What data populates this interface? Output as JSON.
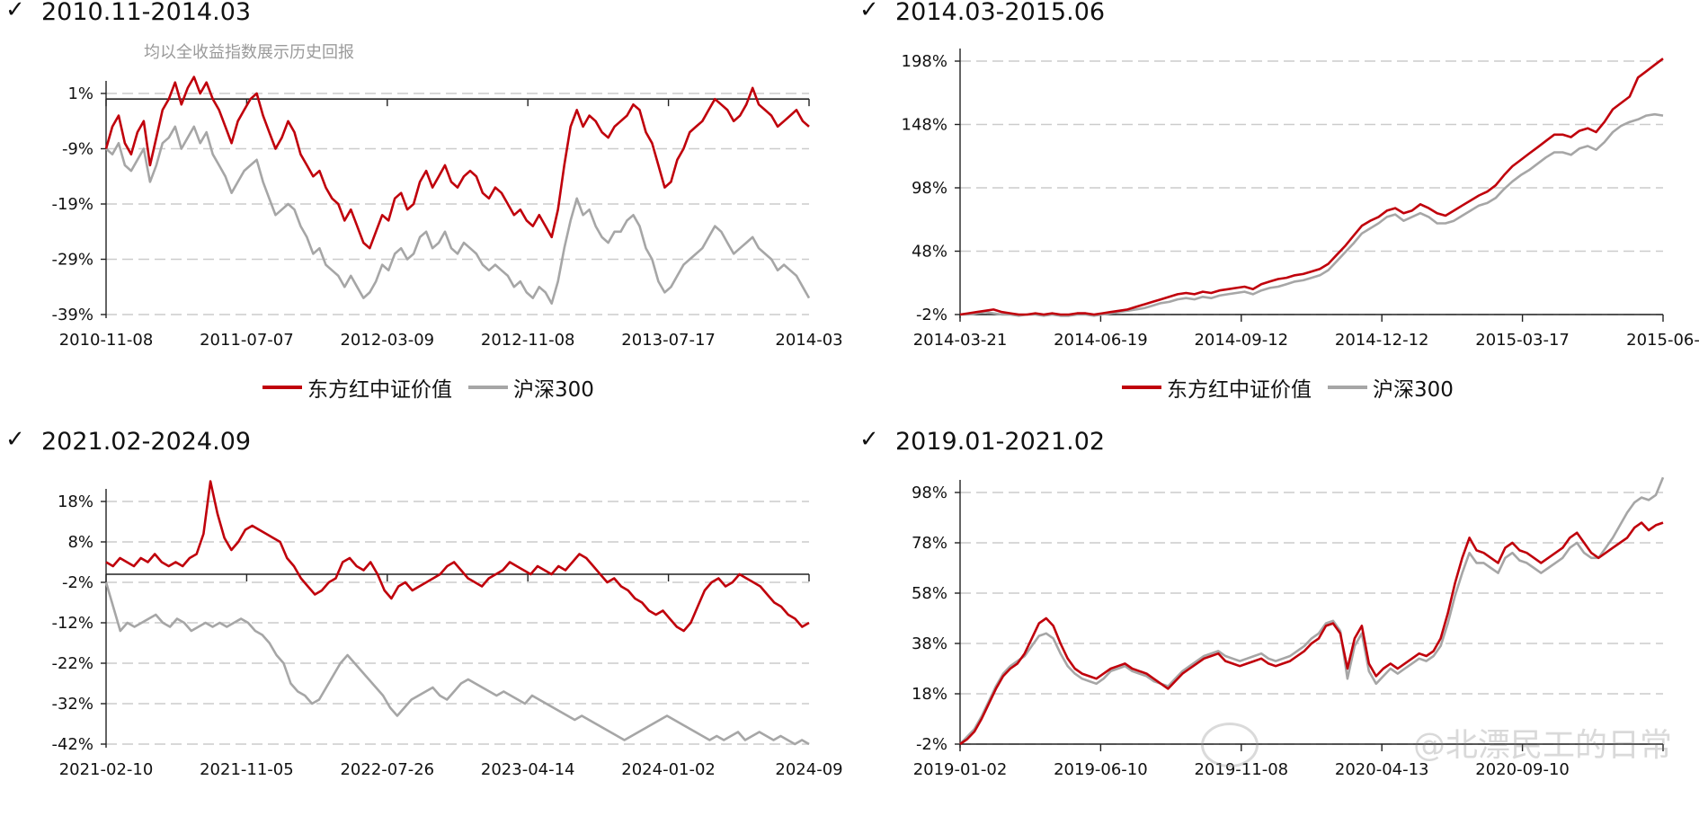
{
  "colors": {
    "red": "#c0000b",
    "gray": "#a6a6a6",
    "axis": "#222222",
    "grid": "#cccccc"
  },
  "watermark": "@北漂民工的日常",
  "chart_data": [
    {
      "type": "line",
      "check": "✓",
      "title": "2010.11-2014.03",
      "annotation": "均以全收益指数展示历史回报",
      "yticks": [
        "1%",
        "-9%",
        "-19%",
        "-29%",
        "-39%"
      ],
      "ylim": [
        -39,
        6
      ],
      "x_ticks": [
        "2010-11-08",
        "2011-07-07",
        "2012-03-09",
        "2012-11-08",
        "2013-07-17",
        "2014-03"
      ],
      "baseline": 0,
      "legend": [
        "东方红中证价值",
        "沪深300"
      ],
      "series": [
        {
          "name": "东方红中证价值",
          "color": "#c0000b",
          "values": [
            -9,
            -5,
            -3,
            -8,
            -10,
            -6,
            -4,
            -12,
            -7,
            -2,
            0,
            3,
            -1,
            2,
            4,
            1,
            3,
            0,
            -2,
            -5,
            -8,
            -4,
            -2,
            0,
            1,
            -3,
            -6,
            -9,
            -7,
            -4,
            -6,
            -10,
            -12,
            -14,
            -13,
            -16,
            -18,
            -19,
            -22,
            -20,
            -23,
            -26,
            -27,
            -24,
            -21,
            -22,
            -18,
            -17,
            -20,
            -19,
            -15,
            -13,
            -16,
            -14,
            -12,
            -15,
            -16,
            -14,
            -13,
            -14,
            -17,
            -18,
            -16,
            -17,
            -19,
            -21,
            -20,
            -22,
            -23,
            -21,
            -23,
            -25,
            -20,
            -12,
            -5,
            -2,
            -5,
            -3,
            -4,
            -6,
            -7,
            -5,
            -4,
            -3,
            -1,
            -2,
            -6,
            -8,
            -12,
            -16,
            -15,
            -11,
            -9,
            -6,
            -5,
            -4,
            -2,
            0,
            -1,
            -2,
            -4,
            -3,
            -1,
            2,
            -1,
            -2,
            -3,
            -5,
            -4,
            -3,
            -2,
            -4,
            -5
          ]
        },
        {
          "name": "沪深300",
          "color": "#a6a6a6",
          "values": [
            -9,
            -10,
            -8,
            -12,
            -13,
            -11,
            -9,
            -15,
            -12,
            -8,
            -7,
            -5,
            -9,
            -7,
            -5,
            -8,
            -6,
            -10,
            -12,
            -14,
            -17,
            -15,
            -13,
            -12,
            -11,
            -15,
            -18,
            -21,
            -20,
            -19,
            -20,
            -23,
            -25,
            -28,
            -27,
            -30,
            -31,
            -32,
            -34,
            -32,
            -34,
            -36,
            -35,
            -33,
            -30,
            -31,
            -28,
            -27,
            -29,
            -28,
            -25,
            -24,
            -27,
            -26,
            -24,
            -27,
            -28,
            -26,
            -27,
            -28,
            -30,
            -31,
            -30,
            -31,
            -32,
            -34,
            -33,
            -35,
            -36,
            -34,
            -35,
            -37,
            -33,
            -27,
            -22,
            -18,
            -21,
            -20,
            -23,
            -25,
            -26,
            -24,
            -24,
            -22,
            -21,
            -23,
            -27,
            -29,
            -33,
            -35,
            -34,
            -32,
            -30,
            -29,
            -28,
            -27,
            -25,
            -23,
            -24,
            -26,
            -28,
            -27,
            -26,
            -25,
            -27,
            -28,
            -29,
            -31,
            -30,
            -31,
            -32,
            -34,
            -36
          ]
        }
      ]
    },
    {
      "type": "line",
      "check": "✓",
      "title": "2014.03-2015.06",
      "yticks": [
        "198%",
        "148%",
        "98%",
        "48%",
        "-2%"
      ],
      "ylim": [
        -2,
        200
      ],
      "x_ticks": [
        "2014-03-21",
        "2014-06-19",
        "2014-09-12",
        "2014-12-12",
        "2015-03-17",
        "2015-06-"
      ],
      "legend": [
        "东方红中证价值",
        "沪深300"
      ],
      "series": [
        {
          "name": "东方红中证价值",
          "color": "#c0000b",
          "values": [
            -2,
            -1,
            0,
            1,
            2,
            0,
            -1,
            -2,
            -2,
            -1,
            -2,
            -1,
            -2,
            -2,
            -1,
            -1,
            -2,
            -1,
            0,
            1,
            2,
            4,
            6,
            8,
            10,
            12,
            14,
            15,
            14,
            16,
            15,
            17,
            18,
            19,
            20,
            18,
            22,
            24,
            26,
            27,
            29,
            30,
            32,
            34,
            38,
            45,
            52,
            60,
            68,
            72,
            75,
            80,
            82,
            78,
            80,
            85,
            82,
            78,
            76,
            80,
            84,
            88,
            92,
            95,
            100,
            108,
            115,
            120,
            125,
            130,
            135,
            140,
            140,
            138,
            143,
            145,
            142,
            150,
            160,
            165,
            170,
            185,
            190,
            195,
            200
          ]
        },
        {
          "name": "沪深300",
          "color": "#a6a6a6",
          "values": [
            -2,
            -2,
            -1,
            0,
            -1,
            -2,
            -2,
            -3,
            -2,
            -2,
            -3,
            -2,
            -3,
            -3,
            -2,
            -2,
            -3,
            -2,
            -1,
            0,
            1,
            2,
            3,
            5,
            7,
            8,
            10,
            11,
            10,
            12,
            11,
            13,
            14,
            15,
            16,
            14,
            17,
            19,
            20,
            22,
            24,
            25,
            27,
            29,
            33,
            40,
            47,
            54,
            62,
            66,
            70,
            75,
            77,
            72,
            75,
            78,
            75,
            70,
            70,
            72,
            76,
            80,
            84,
            86,
            90,
            97,
            103,
            108,
            112,
            117,
            122,
            126,
            126,
            124,
            129,
            131,
            128,
            134,
            142,
            147,
            150,
            152,
            155,
            156,
            155
          ]
        }
      ]
    },
    {
      "type": "line",
      "check": "✓",
      "title": "2021.02-2024.09",
      "yticks": [
        "18%",
        "8%",
        "-2%",
        "-12%",
        "-22%",
        "-32%",
        "-42%"
      ],
      "ylim": [
        -42,
        25
      ],
      "x_ticks": [
        "2021-02-10",
        "2021-11-05",
        "2022-07-26",
        "2023-04-14",
        "2024-01-02",
        "2024-09"
      ],
      "baseline": 0,
      "legend": [],
      "series": [
        {
          "name": "东方红中证价值",
          "color": "#c0000b",
          "values": [
            3,
            2,
            4,
            3,
            2,
            4,
            3,
            5,
            3,
            2,
            3,
            2,
            4,
            5,
            10,
            23,
            15,
            9,
            6,
            8,
            11,
            12,
            11,
            10,
            9,
            8,
            4,
            2,
            -1,
            -3,
            -5,
            -4,
            -2,
            -1,
            3,
            4,
            2,
            1,
            3,
            0,
            -4,
            -6,
            -3,
            -2,
            -4,
            -3,
            -2,
            -1,
            0,
            2,
            3,
            1,
            -1,
            -2,
            -3,
            -1,
            0,
            1,
            3,
            2,
            1,
            0,
            2,
            1,
            0,
            2,
            1,
            3,
            5,
            4,
            2,
            0,
            -2,
            -1,
            -3,
            -4,
            -6,
            -7,
            -9,
            -10,
            -9,
            -11,
            -13,
            -14,
            -12,
            -8,
            -4,
            -2,
            -1,
            -3,
            -2,
            0,
            -1,
            -2,
            -3,
            -5,
            -7,
            -8,
            -10,
            -11,
            -13,
            -12
          ]
        },
        {
          "name": "沪深300",
          "color": "#a6a6a6",
          "values": [
            -2,
            -8,
            -14,
            -12,
            -13,
            -12,
            -11,
            -10,
            -12,
            -13,
            -11,
            -12,
            -14,
            -13,
            -12,
            -13,
            -12,
            -13,
            -12,
            -11,
            -12,
            -14,
            -15,
            -17,
            -20,
            -22,
            -27,
            -29,
            -30,
            -32,
            -31,
            -28,
            -25,
            -22,
            -20,
            -22,
            -24,
            -26,
            -28,
            -30,
            -33,
            -35,
            -33,
            -31,
            -30,
            -29,
            -28,
            -30,
            -31,
            -29,
            -27,
            -26,
            -27,
            -28,
            -29,
            -30,
            -29,
            -30,
            -31,
            -32,
            -30,
            -31,
            -32,
            -33,
            -34,
            -35,
            -36,
            -35,
            -36,
            -37,
            -38,
            -39,
            -40,
            -41,
            -40,
            -39,
            -38,
            -37,
            -36,
            -35,
            -36,
            -37,
            -38,
            -39,
            -40,
            -41,
            -40,
            -41,
            -40,
            -39,
            -41,
            -40,
            -39,
            -40,
            -41,
            -40,
            -41,
            -42,
            -41,
            -42
          ]
        }
      ]
    },
    {
      "type": "line",
      "check": "✓",
      "title": "2019.01-2021.02",
      "yticks": [
        "98%",
        "78%",
        "58%",
        "38%",
        "18%",
        "-2%"
      ],
      "ylim": [
        -2,
        104
      ],
      "x_ticks": [
        "2019-01-02",
        "2019-06-10",
        "2019-11-08",
        "2020-04-13",
        "2020-09-10",
        ""
      ],
      "legend": [],
      "series": [
        {
          "name": "东方红中证价值",
          "color": "#c0000b",
          "values": [
            -2,
            0,
            3,
            8,
            14,
            20,
            25,
            28,
            30,
            34,
            40,
            46,
            48,
            45,
            38,
            32,
            28,
            26,
            25,
            24,
            26,
            28,
            29,
            30,
            28,
            27,
            26,
            24,
            22,
            20,
            23,
            26,
            28,
            30,
            32,
            33,
            34,
            31,
            30,
            29,
            30,
            31,
            32,
            30,
            29,
            30,
            31,
            33,
            35,
            38,
            40,
            45,
            46,
            42,
            28,
            40,
            45,
            30,
            25,
            28,
            30,
            28,
            30,
            32,
            34,
            33,
            35,
            40,
            50,
            62,
            72,
            80,
            75,
            74,
            72,
            70,
            76,
            78,
            75,
            74,
            72,
            70,
            72,
            74,
            76,
            80,
            82,
            78,
            74,
            72,
            74,
            76,
            78,
            80,
            84,
            86,
            83,
            85,
            86
          ]
        },
        {
          "name": "沪深300",
          "color": "#a6a6a6",
          "values": [
            -2,
            1,
            4,
            9,
            15,
            21,
            26,
            29,
            31,
            33,
            37,
            41,
            42,
            40,
            34,
            29,
            26,
            24,
            23,
            22,
            24,
            27,
            28,
            29,
            27,
            26,
            25,
            23,
            22,
            21,
            24,
            27,
            29,
            31,
            33,
            34,
            35,
            33,
            32,
            31,
            32,
            33,
            34,
            32,
            31,
            32,
            33,
            35,
            37,
            40,
            42,
            46,
            47,
            43,
            24,
            37,
            42,
            27,
            22,
            25,
            28,
            26,
            28,
            30,
            32,
            31,
            33,
            37,
            46,
            57,
            66,
            74,
            70,
            70,
            68,
            66,
            72,
            74,
            71,
            70,
            68,
            66,
            68,
            70,
            72,
            76,
            78,
            74,
            72,
            72,
            76,
            80,
            85,
            90,
            94,
            96,
            95,
            97,
            104
          ]
        }
      ]
    }
  ]
}
